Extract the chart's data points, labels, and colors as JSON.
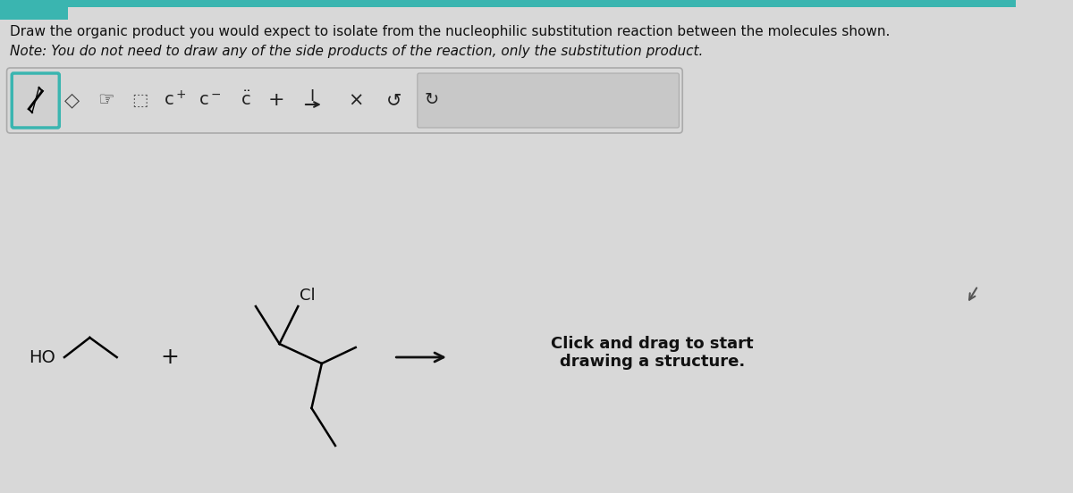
{
  "bg_color": "#d8d8d8",
  "toolbar_bg": "#d0d0d0",
  "toolbar_border": "#888888",
  "text_color": "#111111",
  "title_line1": "Draw the organic product you would expect to isolate from the nucleophilic substitution reaction between the molecules shown.",
  "title_line2": "Note: You do not need to draw any of the side products of the reaction, only the substitution product.",
  "click_drag_text": "Click and drag to start\ndrawing a structure.",
  "label_HO": "HO",
  "label_Cl": "Cl",
  "label_plus": "+",
  "teal_bar_color": "#3ab5b0",
  "fig_width": 12.0,
  "fig_height": 5.52
}
